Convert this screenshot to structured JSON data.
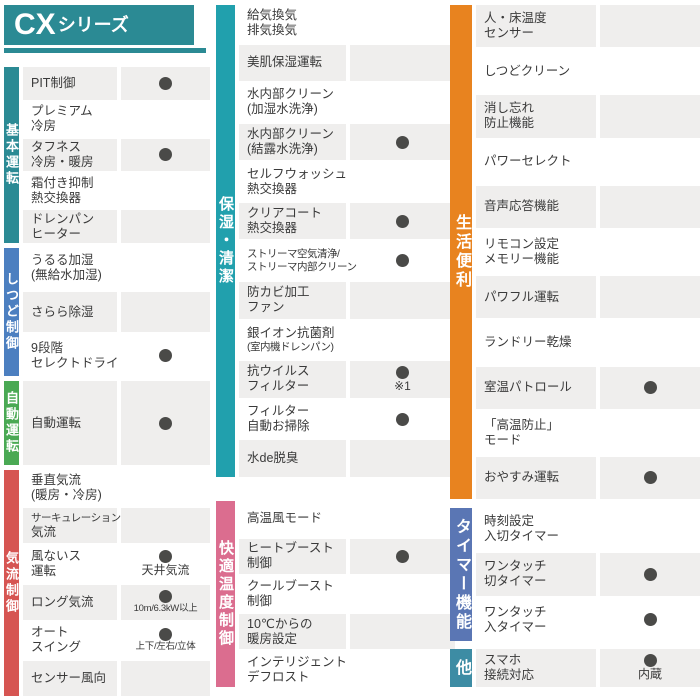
{
  "header": {
    "title_main": "CX",
    "title_sub": "シリーズ",
    "bg_color": "#2b8a94",
    "text_color": "#ffffff"
  },
  "theme": {
    "dot_color": "#4a4a48",
    "cell_bg": "#efeeed",
    "text_color": "#3a3a3a"
  },
  "columns": [
    {
      "sections": [
        {
          "category": "基本運転",
          "color": "#2b8a94",
          "rows": [
            {
              "lines": [
                "PIT制御"
              ],
              "dot": true
            },
            {
              "lines": [
                "プレミアム",
                "冷房"
              ],
              "dot": false
            },
            {
              "lines": [
                "タフネス",
                "冷房・暖房"
              ],
              "dot": true
            },
            {
              "lines": [
                "霜付き抑制",
                "熱交換器"
              ],
              "dot": false
            },
            {
              "lines": [
                "ドレンパン",
                "ヒーター"
              ],
              "dot": false
            }
          ]
        },
        {
          "category": "しつど制御",
          "color": "#4c7fc0",
          "rows": [
            {
              "lines": [
                "うるる加湿",
                "(無給水加湿)"
              ],
              "dot": false
            },
            {
              "lines": [
                "さらら除湿"
              ],
              "dot": false
            },
            {
              "lines": [
                "9段階",
                "セレクトドライ"
              ],
              "dot": true
            }
          ]
        },
        {
          "category": "自動運転",
          "color": "#4aa954",
          "rows": [
            {
              "lines": [
                "自動運転"
              ],
              "dot": true
            }
          ]
        },
        {
          "category": "気流制御",
          "color": "#d65552",
          "rows": [
            {
              "lines": [
                "垂直気流",
                "(暖房・冷房)"
              ],
              "dot": false
            },
            {
              "lines": [
                "サーキュレーション",
                "気流"
              ],
              "dot": false
            },
            {
              "lines": [
                "風ないス",
                "運転"
              ],
              "dot": true,
              "note": "天井気流"
            },
            {
              "lines": [
                "ロング気流"
              ],
              "dot": true,
              "note": "10m/6.3kW以上"
            },
            {
              "lines": [
                "オート",
                "スイング"
              ],
              "dot": true,
              "note": "上下/左右/立体"
            },
            {
              "lines": [
                "センサー風向"
              ],
              "dot": false
            }
          ]
        }
      ]
    },
    {
      "sections": [
        {
          "category": "保湿・清潔",
          "color": "#21a0ad",
          "rows": [
            {
              "lines": [
                "給気換気",
                "排気換気"
              ],
              "dot": false
            },
            {
              "lines": [
                "美肌保湿運転"
              ],
              "dot": false
            },
            {
              "lines": [
                "水内部クリーン",
                "(加湿水洗浄)"
              ],
              "dot": false
            },
            {
              "lines": [
                "水内部クリーン",
                "(結露水洗浄)"
              ],
              "dot": true
            },
            {
              "lines": [
                "セルフウォッシュ",
                "熱交換器"
              ],
              "dot": false
            },
            {
              "lines": [
                "クリアコート",
                "熱交換器"
              ],
              "dot": true
            },
            {
              "lines": [
                "ストリーマ空気清浄/",
                "ストリーマ内部クリーン"
              ],
              "dot": true
            },
            {
              "lines": [
                "防カビ加工",
                "ファン"
              ],
              "dot": false
            },
            {
              "lines": [
                "銀イオン抗菌剤",
                "(室内機ドレンパン)"
              ],
              "dot": false
            },
            {
              "lines": [
                "抗ウイルス",
                "フィルター"
              ],
              "dot": true,
              "note": "※1"
            },
            {
              "lines": [
                "フィルター",
                "自動お掃除"
              ],
              "dot": true
            },
            {
              "lines": [
                "水de脱臭"
              ],
              "dot": false
            }
          ]
        },
        {
          "category": "快適温度制御",
          "color": "#db6d8f",
          "rows": [
            {
              "lines": [
                "高温風モード"
              ],
              "dot": false
            },
            {
              "lines": [
                "ヒートブースト",
                "制御"
              ],
              "dot": true
            },
            {
              "lines": [
                "クールブースト",
                "制御"
              ],
              "dot": false
            },
            {
              "lines": [
                "10℃からの",
                "暖房設定"
              ],
              "dot": false
            },
            {
              "lines": [
                "インテリジェント",
                "デフロスト"
              ],
              "dot": false
            }
          ]
        }
      ]
    },
    {
      "sections": [
        {
          "category": "生活便利",
          "color": "#e8831f",
          "rows": [
            {
              "lines": [
                "人・床温度",
                "センサー"
              ],
              "dot": false
            },
            {
              "lines": [
                "しつどクリーン"
              ],
              "dot": false
            },
            {
              "lines": [
                "消し忘れ",
                "防止機能"
              ],
              "dot": false
            },
            {
              "lines": [
                "パワーセレクト"
              ],
              "dot": false
            },
            {
              "lines": [
                "音声応答機能"
              ],
              "dot": false
            },
            {
              "lines": [
                "リモコン設定",
                "メモリー機能"
              ],
              "dot": false
            },
            {
              "lines": [
                "パワフル運転"
              ],
              "dot": false
            },
            {
              "lines": [
                "ランドリー乾燥"
              ],
              "dot": false
            },
            {
              "lines": [
                "室温パトロール"
              ],
              "dot": true
            },
            {
              "lines": [
                "「高温防止」",
                "モード"
              ],
              "dot": false
            },
            {
              "lines": [
                "おやすみ運転"
              ],
              "dot": true
            }
          ]
        },
        {
          "category": "タイマー機能",
          "color": "#5a76b4",
          "rows": [
            {
              "lines": [
                "時刻設定",
                "入切タイマー"
              ],
              "dot": false
            },
            {
              "lines": [
                "ワンタッチ",
                "切タイマー"
              ],
              "dot": true
            },
            {
              "lines": [
                "ワンタッチ",
                "入タイマー"
              ],
              "dot": true
            }
          ]
        },
        {
          "category": "他",
          "color": "#3d8ca4",
          "rows": [
            {
              "lines": [
                "スマホ",
                "接続対応"
              ],
              "dot": true,
              "note": "内蔵"
            }
          ]
        }
      ]
    }
  ]
}
